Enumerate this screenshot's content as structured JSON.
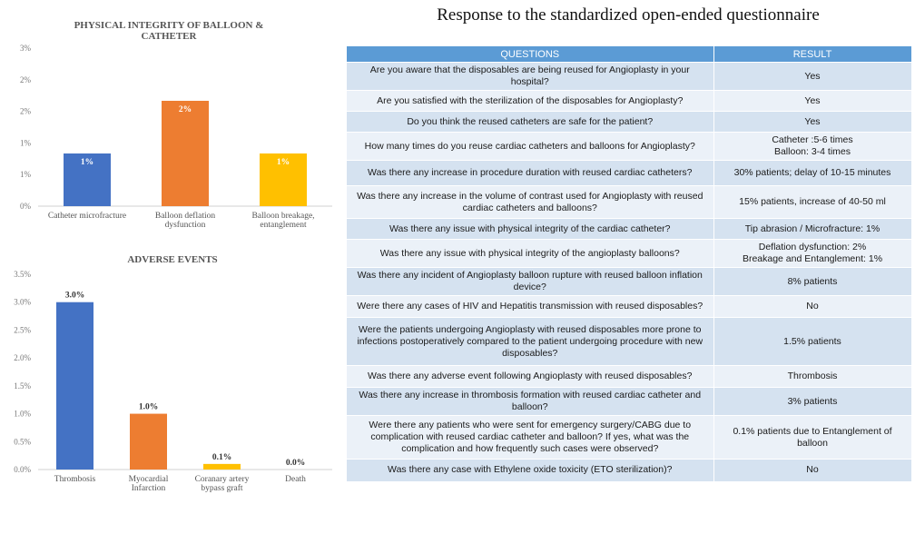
{
  "chart_data": [
    {
      "type": "bar",
      "title": [
        "PHYSICAL INTEGRITY OF BALLOON &",
        "CATHETER"
      ],
      "categories": [
        [
          "Catheter microfracture"
        ],
        [
          "Balloon deflation",
          "dysfunction"
        ],
        [
          "Balloon breakage,",
          "entanglement"
        ]
      ],
      "values": [
        1,
        2,
        1
      ],
      "value_labels": [
        "1%",
        "2%",
        "1%"
      ],
      "colors": [
        "#4472c4",
        "#ed7d31",
        "#ffc000"
      ],
      "ytick_labels": [
        "0%",
        "1%",
        "1%",
        "2%",
        "2%",
        "3%"
      ],
      "ylim": [
        0,
        3
      ],
      "label_position": "inside-top",
      "grid": false
    },
    {
      "type": "bar",
      "title": [
        "ADVERSE EVENTS"
      ],
      "categories": [
        [
          "Thrombosis"
        ],
        [
          "Myocardial",
          "Infarction"
        ],
        [
          "Coranary artery",
          "bypass graft"
        ],
        [
          "Death"
        ]
      ],
      "values": [
        3.0,
        1.0,
        0.1,
        0.0
      ],
      "value_labels": [
        "3.0%",
        "1.0%",
        "0.1%",
        "0.0%"
      ],
      "colors": [
        "#4472c4",
        "#ed7d31",
        "#ffc000",
        "#a5a5a5"
      ],
      "ytick_labels": [
        "0.0%",
        "0.5%",
        "1.0%",
        "1.5%",
        "2.0%",
        "2.5%",
        "3.0%",
        "3.5%"
      ],
      "ylim": [
        0,
        3.5
      ],
      "label_position": "above",
      "grid": false
    }
  ],
  "questionnaire": {
    "title": "Response to the standardized open-ended questionnaire",
    "headers": [
      "QUESTIONS",
      "RESULT"
    ],
    "rows": [
      {
        "q": "Are you aware that the disposables are being reused for Angioplasty in your hospital?",
        "r": "Yes"
      },
      {
        "q": "Are you satisfied with the sterilization of the disposables for Angioplasty?",
        "r": "Yes"
      },
      {
        "q": "Do you think the reused catheters are safe for the patient?",
        "r": "Yes"
      },
      {
        "q": "How many times do you reuse cardiac catheters and balloons for Angioplasty?",
        "r": "Catheter :5-6 times\nBalloon: 3-4 times"
      },
      {
        "q": "Was there any increase in procedure duration with reused cardiac catheters?",
        "r": "30% patients; delay of 10-15 minutes"
      },
      {
        "q": "Was there any increase in the volume of contrast used for Angioplasty with reused cardiac catheters and balloons?",
        "r": "15% patients, increase of 40-50 ml"
      },
      {
        "q": "Was there any issue with physical integrity of the cardiac catheter?",
        "r": "Tip abrasion / Microfracture: 1%"
      },
      {
        "q": "Was there any issue with physical integrity of the angioplasty balloons?",
        "r": "Deflation dysfunction: 2%\nBreakage and Entanglement: 1%"
      },
      {
        "q": "Was there any incident of Angioplasty balloon rupture with reused balloon inflation device?",
        "r": "8% patients"
      },
      {
        "q": "Were there any cases of HIV and Hepatitis transmission with reused disposables?",
        "r": "No"
      },
      {
        "q": "Were the patients undergoing Angioplasty with reused disposables more prone to infections postoperatively compared to the patient undergoing procedure with new disposables?",
        "r": "1.5% patients"
      },
      {
        "q": "Was there any adverse event following Angioplasty with reused disposables?",
        "r": "Thrombosis"
      },
      {
        "q": "Was there any increase in thrombosis formation with reused cardiac catheter and balloon?",
        "r": "3% patients"
      },
      {
        "q": "Were there any patients who were sent for emergency surgery/CABG due to complication with reused cardiac catheter and balloon? If yes, what was the complication and how frequently such cases were observed?",
        "r": "0.1% patients due to Entanglement of balloon"
      },
      {
        "q": "Was there any case with Ethylene oxide toxicity (ETO sterilization)?",
        "r": "No"
      }
    ]
  }
}
